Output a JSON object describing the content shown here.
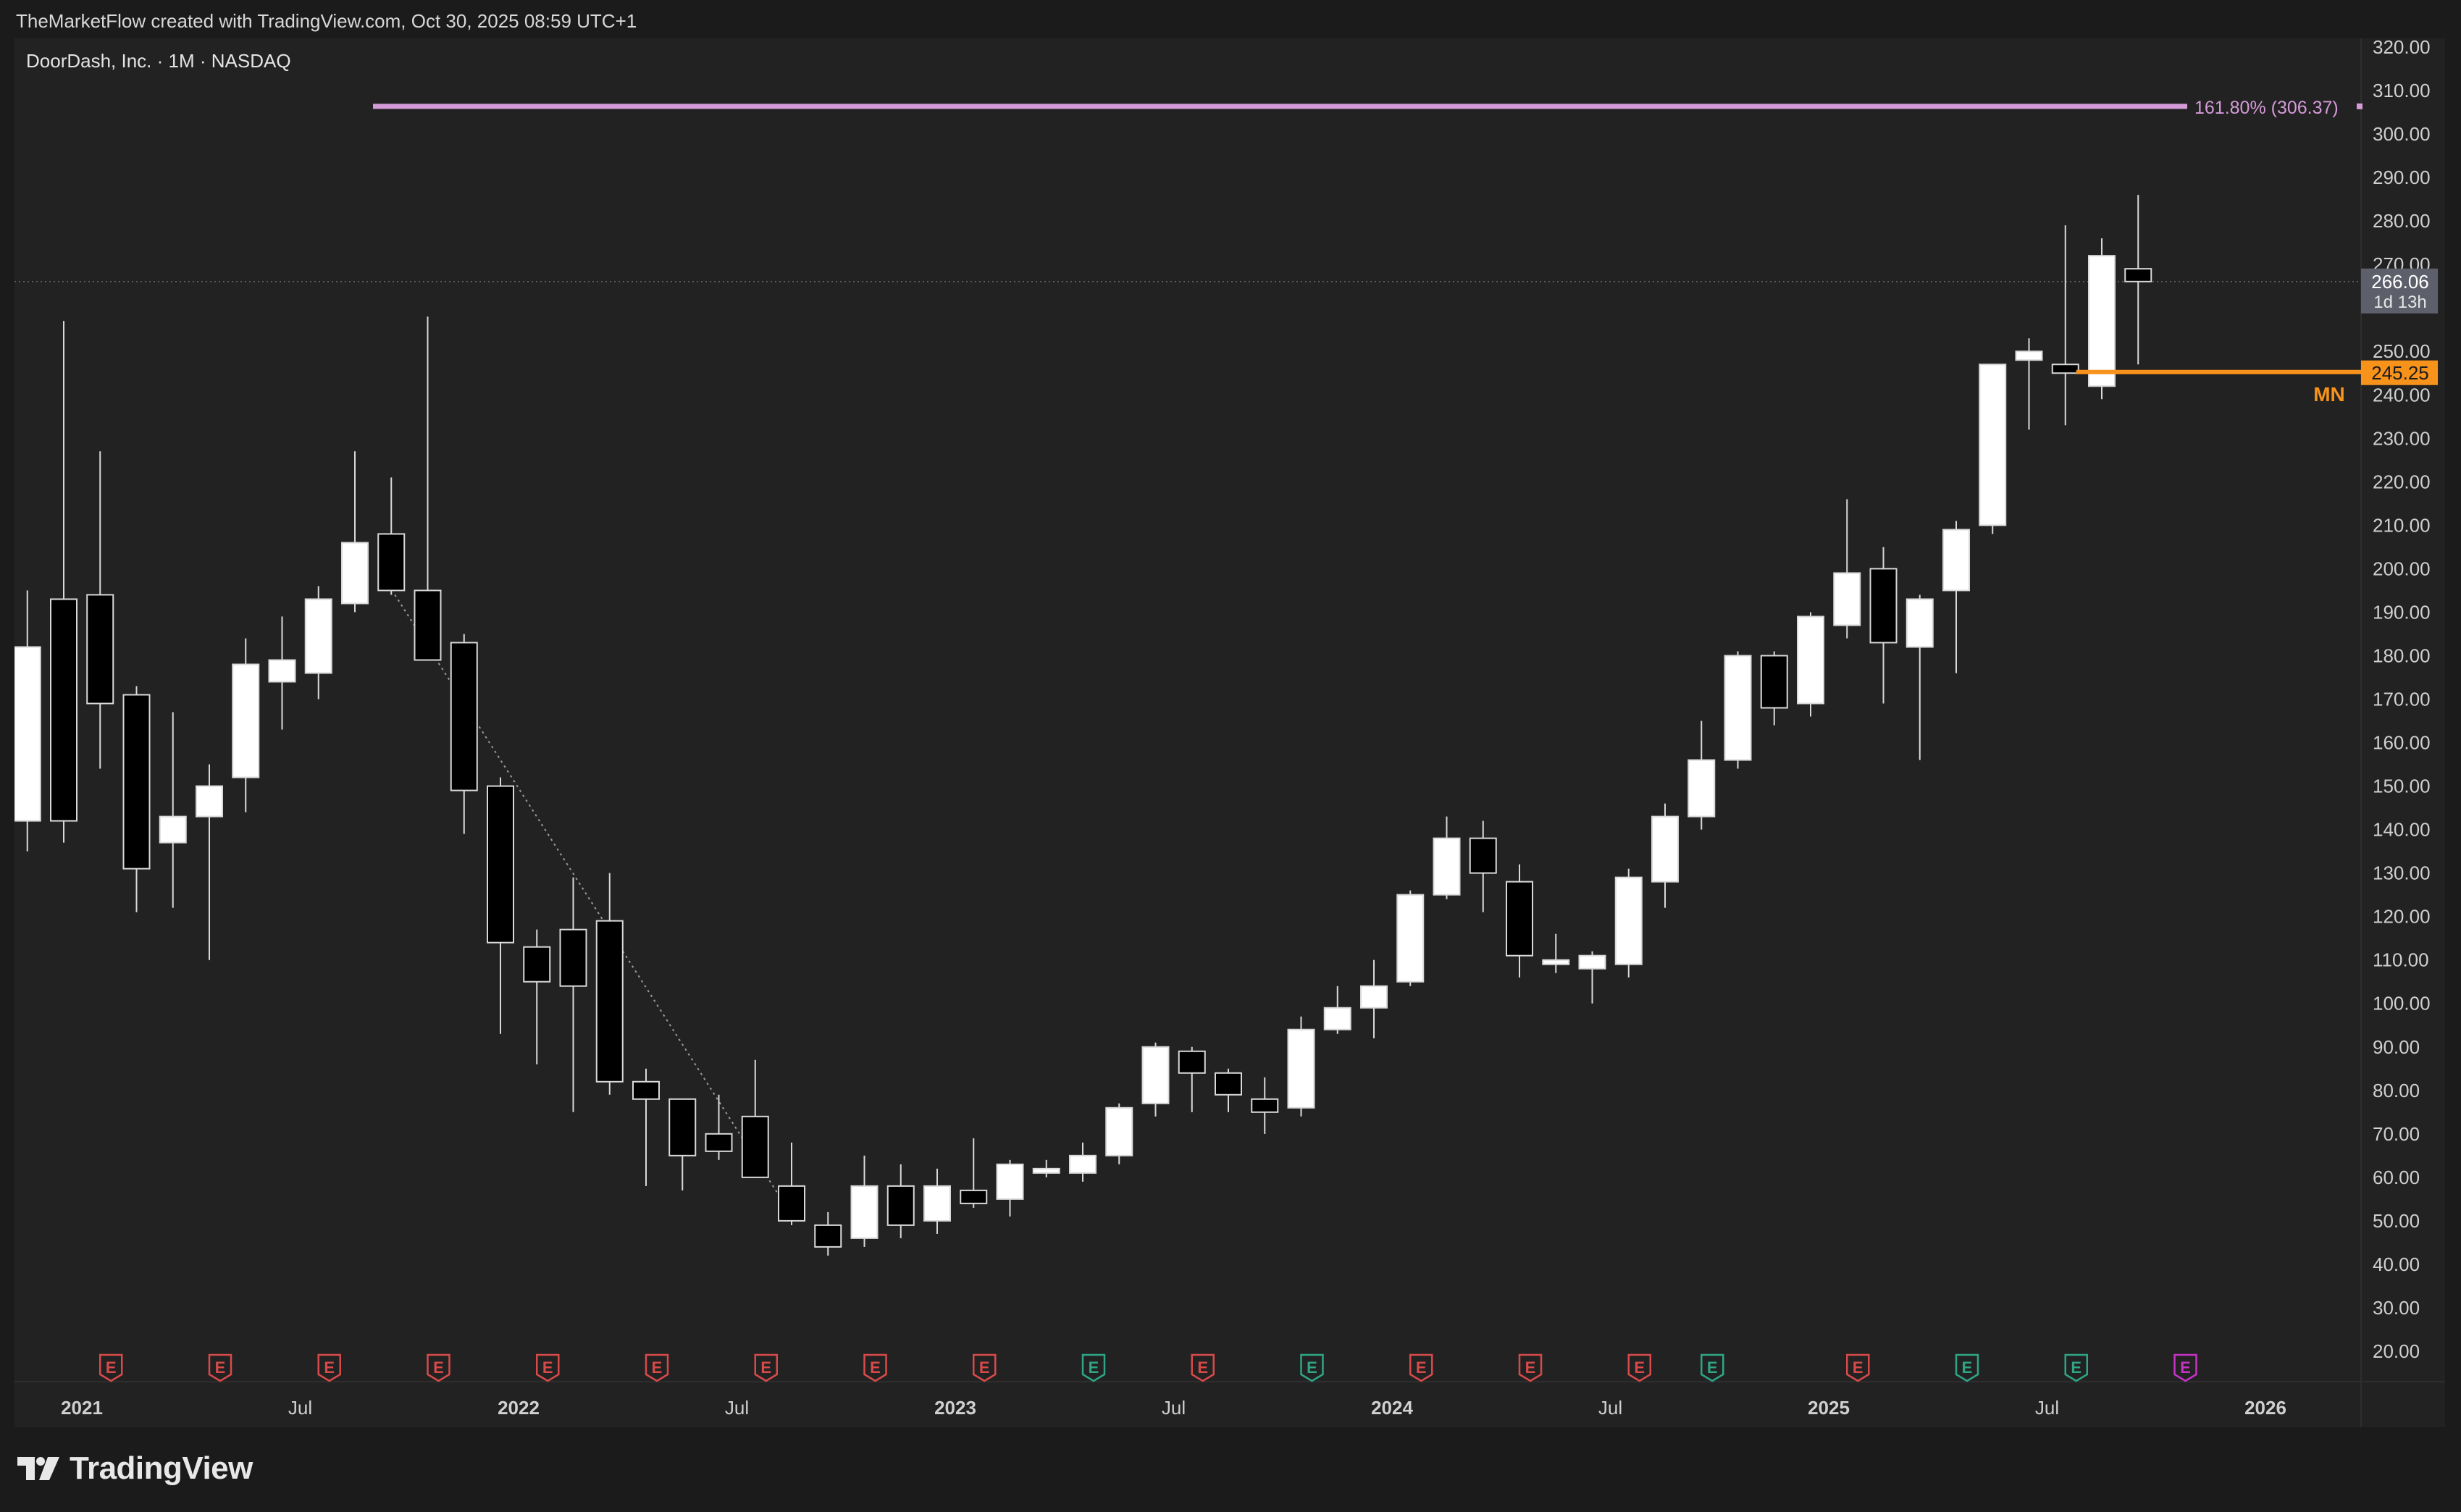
{
  "header": {
    "text": "TheMarketFlow created with TradingView.com, Oct 30, 2025 08:59 UTC+1"
  },
  "branding": {
    "name": "TradingView"
  },
  "colors": {
    "background": "#1b1b1b",
    "panel": "#222222",
    "bull_body": "#ffffff",
    "bear_body": "#000000",
    "wick": "#d9d9d9",
    "fib_line": "#d59bd9",
    "level_line": "#f7931a",
    "earnings_red": "#d84a4a",
    "earnings_green": "#2fa585",
    "earnings_magenta": "#c632c6",
    "current_price_box": "#5d606b"
  },
  "chart_data": {
    "type": "candlestick",
    "title": "DoorDash, Inc. · 1M · NASDAQ",
    "symbol": "DoorDash, Inc.",
    "interval": "1M",
    "exchange": "NASDAQ",
    "ylim": [
      15,
      322
    ],
    "y_ticks": [
      "320.00",
      "310.00",
      "300.00",
      "290.00",
      "280.00",
      "270.00",
      "250.00",
      "240.00",
      "230.00",
      "220.00",
      "210.00",
      "200.00",
      "190.00",
      "180.00",
      "170.00",
      "160.00",
      "150.00",
      "140.00",
      "130.00",
      "120.00",
      "110.00",
      "100.00",
      "90.00",
      "80.00",
      "70.00",
      "60.00",
      "50.00",
      "40.00",
      "30.00",
      "20.00"
    ],
    "x_ticks": [
      {
        "label": "2021",
        "date": "2021-01"
      },
      {
        "label": "Jul",
        "date": "2021-07"
      },
      {
        "label": "2022",
        "date": "2022-01"
      },
      {
        "label": "Jul",
        "date": "2022-07"
      },
      {
        "label": "2023",
        "date": "2023-01"
      },
      {
        "label": "Jul",
        "date": "2023-07"
      },
      {
        "label": "2024",
        "date": "2024-01"
      },
      {
        "label": "Jul",
        "date": "2024-07"
      },
      {
        "label": "2025",
        "date": "2025-01"
      },
      {
        "label": "Jul",
        "date": "2025-07"
      },
      {
        "label": "2026",
        "date": "2026-01"
      }
    ],
    "candles": [
      {
        "date": "2020-12",
        "open": 142,
        "high": 195,
        "low": 135,
        "close": 182
      },
      {
        "date": "2021-01",
        "open": 193,
        "high": 257,
        "low": 137,
        "close": 142
      },
      {
        "date": "2021-02",
        "open": 194,
        "high": 227,
        "low": 154,
        "close": 169
      },
      {
        "date": "2021-03",
        "open": 171,
        "high": 173,
        "low": 121,
        "close": 131
      },
      {
        "date": "2021-04",
        "open": 137,
        "high": 167,
        "low": 122,
        "close": 143
      },
      {
        "date": "2021-05",
        "open": 143,
        "high": 155,
        "low": 110,
        "close": 150
      },
      {
        "date": "2021-06",
        "open": 152,
        "high": 184,
        "low": 144,
        "close": 178
      },
      {
        "date": "2021-07",
        "open": 174,
        "high": 189,
        "low": 163,
        "close": 179
      },
      {
        "date": "2021-08",
        "open": 176,
        "high": 196,
        "low": 170,
        "close": 193
      },
      {
        "date": "2021-09",
        "open": 192,
        "high": 227,
        "low": 190,
        "close": 206
      },
      {
        "date": "2021-10",
        "open": 208,
        "high": 221,
        "low": 194,
        "close": 195
      },
      {
        "date": "2021-11",
        "open": 195,
        "high": 258,
        "low": 179,
        "close": 179
      },
      {
        "date": "2021-12",
        "open": 183,
        "high": 185,
        "low": 139,
        "close": 149
      },
      {
        "date": "2022-01",
        "open": 150,
        "high": 152,
        "low": 93,
        "close": 114
      },
      {
        "date": "2022-02",
        "open": 113,
        "high": 117,
        "low": 86,
        "close": 105
      },
      {
        "date": "2022-03",
        "open": 117,
        "high": 129,
        "low": 75,
        "close": 104
      },
      {
        "date": "2022-04",
        "open": 119,
        "high": 130,
        "low": 79,
        "close": 82
      },
      {
        "date": "2022-05",
        "open": 82,
        "high": 85,
        "low": 58,
        "close": 78
      },
      {
        "date": "2022-06",
        "open": 78,
        "high": 78,
        "low": 57,
        "close": 65
      },
      {
        "date": "2022-07",
        "open": 70,
        "high": 79,
        "low": 64,
        "close": 66
      },
      {
        "date": "2022-08",
        "open": 74,
        "high": 87,
        "low": 60,
        "close": 60
      },
      {
        "date": "2022-09",
        "open": 58,
        "high": 68,
        "low": 49,
        "close": 50
      },
      {
        "date": "2022-10",
        "open": 49,
        "high": 52,
        "low": 42,
        "close": 44
      },
      {
        "date": "2022-11",
        "open": 46,
        "high": 65,
        "low": 44,
        "close": 58
      },
      {
        "date": "2022-12",
        "open": 58,
        "high": 63,
        "low": 46,
        "close": 49
      },
      {
        "date": "2023-01",
        "open": 50,
        "high": 62,
        "low": 47,
        "close": 58
      },
      {
        "date": "2023-02",
        "open": 57,
        "high": 69,
        "low": 53,
        "close": 54
      },
      {
        "date": "2023-03",
        "open": 55,
        "high": 64,
        "low": 51,
        "close": 63
      },
      {
        "date": "2023-04",
        "open": 61,
        "high": 64,
        "low": 60,
        "close": 62
      },
      {
        "date": "2023-05",
        "open": 61,
        "high": 68,
        "low": 59,
        "close": 65
      },
      {
        "date": "2023-06",
        "open": 65,
        "high": 77,
        "low": 63,
        "close": 76
      },
      {
        "date": "2023-07",
        "open": 77,
        "high": 91,
        "low": 74,
        "close": 90
      },
      {
        "date": "2023-08",
        "open": 89,
        "high": 90,
        "low": 75,
        "close": 84
      },
      {
        "date": "2023-09",
        "open": 84,
        "high": 85,
        "low": 75,
        "close": 79
      },
      {
        "date": "2023-10",
        "open": 78,
        "high": 83,
        "low": 70,
        "close": 75
      },
      {
        "date": "2023-11",
        "open": 76,
        "high": 97,
        "low": 74,
        "close": 94
      },
      {
        "date": "2023-12",
        "open": 94,
        "high": 104,
        "low": 93,
        "close": 99
      },
      {
        "date": "2024-01",
        "open": 99,
        "high": 110,
        "low": 92,
        "close": 104
      },
      {
        "date": "2024-02",
        "open": 105,
        "high": 126,
        "low": 104,
        "close": 125
      },
      {
        "date": "2024-03",
        "open": 125,
        "high": 143,
        "low": 124,
        "close": 138
      },
      {
        "date": "2024-04",
        "open": 138,
        "high": 142,
        "low": 121,
        "close": 130
      },
      {
        "date": "2024-05",
        "open": 128,
        "high": 132,
        "low": 106,
        "close": 111
      },
      {
        "date": "2024-06",
        "open": 109,
        "high": 116,
        "low": 107,
        "close": 110
      },
      {
        "date": "2024-07",
        "open": 108,
        "high": 112,
        "low": 100,
        "close": 111
      },
      {
        "date": "2024-08",
        "open": 109,
        "high": 131,
        "low": 106,
        "close": 129
      },
      {
        "date": "2024-09",
        "open": 128,
        "high": 146,
        "low": 122,
        "close": 143
      },
      {
        "date": "2024-10",
        "open": 143,
        "high": 165,
        "low": 140,
        "close": 156
      },
      {
        "date": "2024-11",
        "open": 156,
        "high": 181,
        "low": 154,
        "close": 180
      },
      {
        "date": "2024-12",
        "open": 180,
        "high": 181,
        "low": 164,
        "close": 168
      },
      {
        "date": "2025-01",
        "open": 169,
        "high": 190,
        "low": 166,
        "close": 189
      },
      {
        "date": "2025-02",
        "open": 187,
        "high": 216,
        "low": 184,
        "close": 199
      },
      {
        "date": "2025-03",
        "open": 200,
        "high": 205,
        "low": 169,
        "close": 183
      },
      {
        "date": "2025-04",
        "open": 182,
        "high": 194,
        "low": 156,
        "close": 193
      },
      {
        "date": "2025-05",
        "open": 195,
        "high": 211,
        "low": 176,
        "close": 209
      },
      {
        "date": "2025-06",
        "open": 210,
        "high": 247,
        "low": 208,
        "close": 247
      },
      {
        "date": "2025-07",
        "open": 248,
        "high": 253,
        "low": 232,
        "close": 250
      },
      {
        "date": "2025-08",
        "open": 247,
        "high": 279,
        "low": 233,
        "close": 245
      },
      {
        "date": "2025-09",
        "open": 242,
        "high": 276,
        "low": 239,
        "close": 272
      },
      {
        "date": "2025-10",
        "open": 269,
        "high": 286,
        "low": 247,
        "close": 266.06
      }
    ],
    "current_price": {
      "value": 266.06,
      "label": "266.06",
      "countdown": "1d 13h"
    },
    "fib_level": {
      "label": "161.80% (306.37)",
      "value": 306.37,
      "from_date": "2021-09",
      "to_date": "2025-10"
    },
    "mn_level": {
      "label": "MN",
      "value": 245.25,
      "price_label": "245.25",
      "from_date": "2025-08"
    },
    "trendline": {
      "from": {
        "date": "2021-10",
        "value": 194
      },
      "to": {
        "date": "2022-09",
        "value": 50
      }
    },
    "earnings_markers": [
      {
        "date": "2021-02",
        "label": "E",
        "status": "miss"
      },
      {
        "date": "2021-05",
        "label": "E",
        "status": "miss"
      },
      {
        "date": "2021-08",
        "label": "E",
        "status": "miss"
      },
      {
        "date": "2021-11",
        "label": "E",
        "status": "miss"
      },
      {
        "date": "2022-02",
        "label": "E",
        "status": "miss"
      },
      {
        "date": "2022-05",
        "label": "E",
        "status": "miss"
      },
      {
        "date": "2022-08",
        "label": "E",
        "status": "miss"
      },
      {
        "date": "2022-11",
        "label": "E",
        "status": "miss"
      },
      {
        "date": "2023-02",
        "label": "E",
        "status": "miss"
      },
      {
        "date": "2023-05",
        "label": "E",
        "status": "beat"
      },
      {
        "date": "2023-08",
        "label": "E",
        "status": "miss"
      },
      {
        "date": "2023-11",
        "label": "E",
        "status": "beat"
      },
      {
        "date": "2024-02",
        "label": "E",
        "status": "miss"
      },
      {
        "date": "2024-05",
        "label": "E",
        "status": "miss"
      },
      {
        "date": "2024-08",
        "label": "E",
        "status": "miss"
      },
      {
        "date": "2024-10",
        "label": "E",
        "status": "beat"
      },
      {
        "date": "2025-02",
        "label": "E",
        "status": "miss"
      },
      {
        "date": "2025-05",
        "label": "E",
        "status": "beat"
      },
      {
        "date": "2025-08",
        "label": "E",
        "status": "beat"
      },
      {
        "date": "2025-11",
        "label": "E",
        "status": "upcoming"
      }
    ]
  }
}
